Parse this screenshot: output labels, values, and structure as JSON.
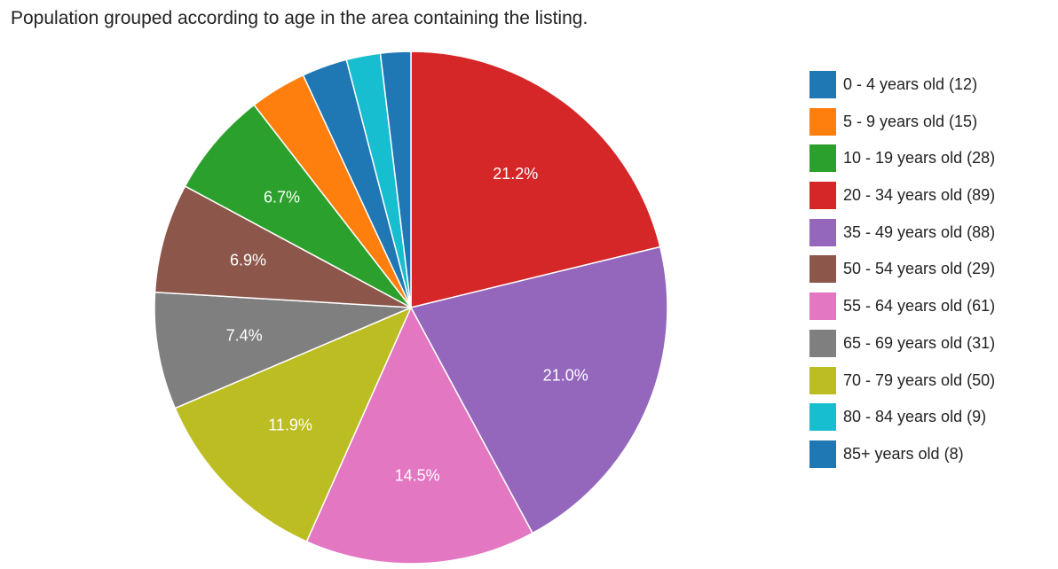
{
  "chart_data": {
    "type": "pie",
    "title": "Population grouped according to age in the area containing the listing.",
    "categories": [
      "0 - 4 years old (12)",
      "5 - 9 years old (15)",
      "10 - 19 years old (28)",
      "20 - 34 years old (89)",
      "35 - 49 years old (88)",
      "50 - 54 years old (29)",
      "55 - 64 years old (61)",
      "65 - 69 years old (31)",
      "70 - 79 years old (50)",
      "80 - 84 years old (9)",
      "85+ years old (8)"
    ],
    "values": [
      12,
      15,
      28,
      89,
      88,
      29,
      61,
      31,
      50,
      9,
      8
    ],
    "percent_labels": [
      "",
      "",
      "6.7%",
      "21.2%",
      "21.0%",
      "6.9%",
      "14.5%",
      "7.4%",
      "11.9%",
      "",
      ""
    ],
    "colors": [
      "#1f77b4",
      "#ff7f0e",
      "#2ca02c",
      "#d62728",
      "#9467bd",
      "#8c564b",
      "#e377c2",
      "#7f7f7f",
      "#bcbd22",
      "#17becf",
      "#1f77b4"
    ],
    "draw_order": [
      3,
      4,
      6,
      8,
      7,
      5,
      2,
      1,
      0,
      9,
      10
    ],
    "start_angle_deg": 0,
    "direction": "clockwise",
    "legend_position": "right"
  }
}
